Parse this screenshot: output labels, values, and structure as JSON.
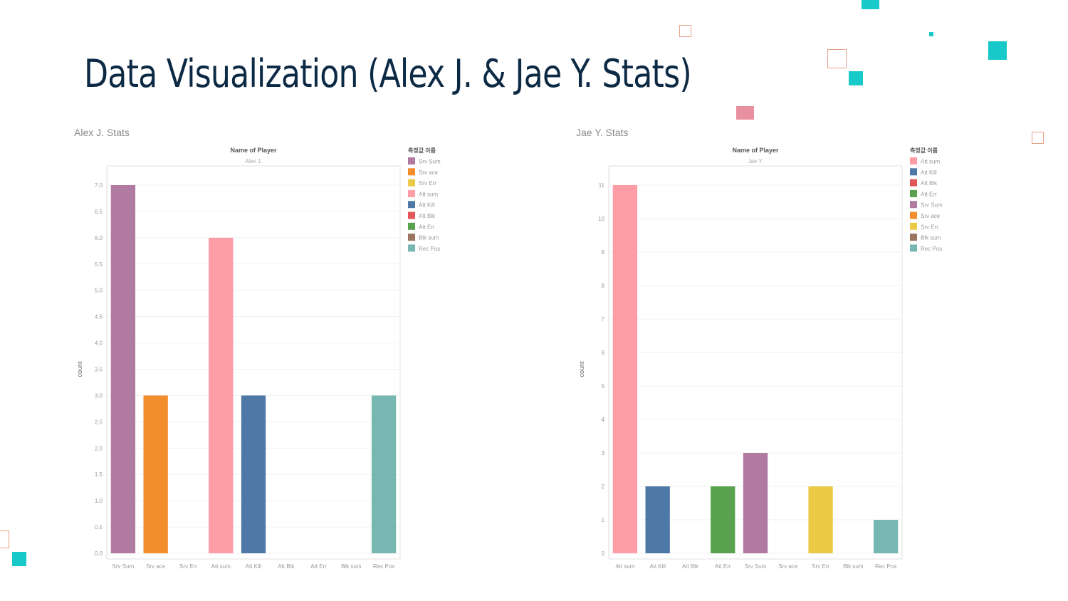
{
  "slide": {
    "title": "Data Visualization (Alex J. & Jae Y. Stats)"
  },
  "colors": {
    "title": "#0d2a45",
    "teal_accent": "#17c9c9",
    "pink_accent": "#e8909f",
    "outline_accent": "#e6a184"
  },
  "chart_data": [
    {
      "type": "bar",
      "caption": "Alex J. Stats",
      "header_title": "Name of Player",
      "header_subtitle": "Alex J.",
      "ylabel": "count",
      "ylim": [
        0,
        7.0
      ],
      "yticks": [
        "0.0",
        "0.5",
        "1.0",
        "1.5",
        "2.0",
        "2.5",
        "3.0",
        "3.5",
        "4.0",
        "4.5",
        "5.0",
        "5.5",
        "6.0",
        "6.5",
        "7.0"
      ],
      "categories": [
        "Srv Sum",
        "Srv ace",
        "Srv Err",
        "Att sum",
        "Att Kill",
        "Att Blk",
        "Att Err",
        "Blk sum",
        "Rec Pos"
      ],
      "values": [
        7,
        3,
        0,
        6,
        3,
        0,
        0,
        0,
        3
      ],
      "bar_colors": [
        "#b07aa1",
        "#f28e2b",
        "#edc948",
        "#ff9da7",
        "#4e79a7",
        "#e15759",
        "#59a14f",
        "#9c755f",
        "#76b7b2"
      ],
      "legend_title": "측정값 이름",
      "legend": [
        {
          "label": "Srv Sum",
          "color": "#b07aa1"
        },
        {
          "label": "Srv ace",
          "color": "#f28e2b"
        },
        {
          "label": "Srv Err",
          "color": "#edc948"
        },
        {
          "label": "Att sum",
          "color": "#ff9da7"
        },
        {
          "label": "Att Kill",
          "color": "#4e79a7"
        },
        {
          "label": "Att Blk",
          "color": "#e15759"
        },
        {
          "label": "Att Err",
          "color": "#59a14f"
        },
        {
          "label": "Blk sum",
          "color": "#9c755f"
        },
        {
          "label": "Rec Pos",
          "color": "#76b7b2"
        }
      ],
      "grid": true,
      "legend_position": "right"
    },
    {
      "type": "bar",
      "caption": "Jae Y. Stats",
      "header_title": "Name of Player",
      "header_subtitle": "Jae Y.",
      "ylabel": "count",
      "ylim": [
        0,
        11
      ],
      "yticks": [
        "0",
        "1",
        "2",
        "3",
        "4",
        "5",
        "6",
        "7",
        "8",
        "9",
        "10",
        "11"
      ],
      "categories": [
        "Att sum",
        "Att Kill",
        "Att Blk",
        "Att Err",
        "Srv Sum",
        "Srv ace",
        "Srv Err",
        "Blk sum",
        "Rec Pos"
      ],
      "values": [
        11,
        2,
        0,
        2,
        3,
        0,
        2,
        0,
        1
      ],
      "bar_colors": [
        "#ff9da7",
        "#4e79a7",
        "#e15759",
        "#59a14f",
        "#b07aa1",
        "#f28e2b",
        "#edc948",
        "#9c755f",
        "#76b7b2"
      ],
      "legend_title": "측정값 이름",
      "legend": [
        {
          "label": "Att sum",
          "color": "#ff9da7"
        },
        {
          "label": "Att Kill",
          "color": "#4e79a7"
        },
        {
          "label": "Att Blk",
          "color": "#e15759"
        },
        {
          "label": "Att Err",
          "color": "#59a14f"
        },
        {
          "label": "Srv Sum",
          "color": "#b07aa1"
        },
        {
          "label": "Srv ace",
          "color": "#f28e2b"
        },
        {
          "label": "Srv Err",
          "color": "#edc948"
        },
        {
          "label": "Blk sum",
          "color": "#9c755f"
        },
        {
          "label": "Rec Pos",
          "color": "#76b7b2"
        }
      ],
      "grid": true,
      "legend_position": "right"
    }
  ]
}
